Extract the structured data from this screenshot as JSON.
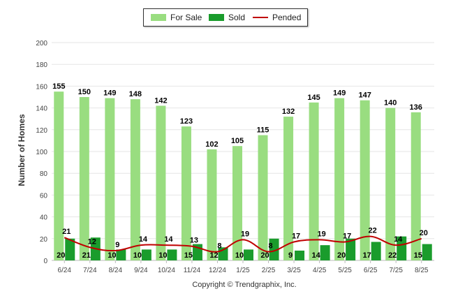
{
  "chart_data": {
    "type": "bar",
    "ylabel": "Number of Homes",
    "ylim": [
      0,
      200
    ],
    "yticks": [
      0,
      20,
      40,
      60,
      80,
      100,
      120,
      140,
      160,
      180,
      200
    ],
    "grid": true,
    "legend_position": "top-center",
    "categories": [
      "6/24",
      "7/24",
      "8/24",
      "9/24",
      "10/24",
      "11/24",
      "12/24",
      "1/25",
      "2/25",
      "3/25",
      "4/25",
      "5/25",
      "6/25",
      "7/25",
      "8/25"
    ],
    "series": [
      {
        "name": "For Sale",
        "type": "bar",
        "color": "#99dd80",
        "values": [
          155,
          150,
          149,
          148,
          142,
          123,
          102,
          105,
          115,
          132,
          145,
          149,
          147,
          140,
          136
        ]
      },
      {
        "name": "Sold",
        "type": "bar",
        "color": "#1a9c2c",
        "values": [
          20,
          21,
          10,
          10,
          10,
          15,
          12,
          10,
          20,
          9,
          14,
          20,
          17,
          22,
          15
        ]
      },
      {
        "name": "Pended",
        "type": "line",
        "color": "#c00000",
        "values": [
          21,
          12,
          9,
          14,
          14,
          13,
          8,
          19,
          8,
          17,
          19,
          17,
          22,
          14,
          20
        ]
      }
    ]
  },
  "legend": {
    "for_sale": "For Sale",
    "sold": "Sold",
    "pended": "Pended"
  },
  "footer": {
    "copyright": "Copyright © Trendgraphix, Inc."
  }
}
